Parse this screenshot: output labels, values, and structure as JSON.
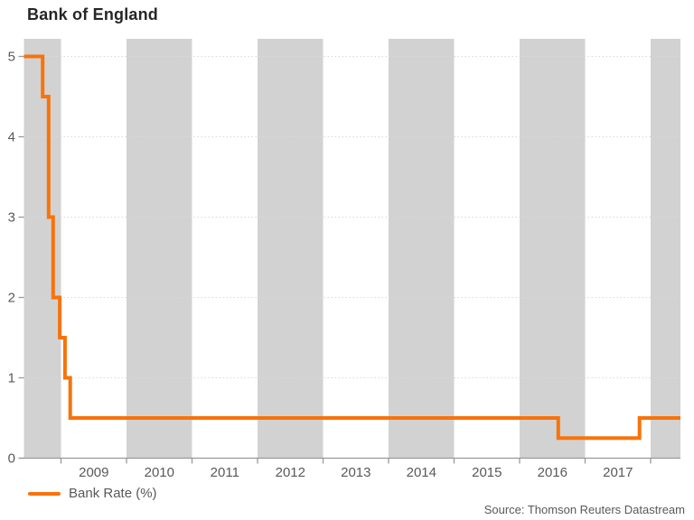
{
  "title": "Bank of England",
  "legend": {
    "label": "Bank Rate (%)"
  },
  "source": "Source: Thomson Reuters Datastream",
  "chart_data": {
    "type": "line",
    "subtype": "step",
    "title": "Bank of England",
    "xlabel": "",
    "ylabel": "",
    "x_range": [
      2008.434,
      2018.455
    ],
    "y_range": [
      0,
      5.21
    ],
    "y_ticks": [
      0,
      1,
      2,
      3,
      4,
      5
    ],
    "x_tick_years": [
      2009,
      2010,
      2011,
      2012,
      2013,
      2014,
      2015,
      2016,
      2017,
      2018
    ],
    "x_tick_labels": [
      "2009",
      "2010",
      "2011",
      "2012",
      "2013",
      "2014",
      "2015",
      "2016",
      "2017"
    ],
    "shaded_years": [
      2008,
      2010,
      2012,
      2014,
      2016,
      2018
    ],
    "grid": "horizontal-dotted",
    "legend_position": "bottom-left",
    "series": [
      {
        "name": "Bank Rate (%)",
        "color": "#f8730a",
        "step_points": [
          [
            2008.434,
            5.0
          ],
          [
            2008.72,
            5.0
          ],
          [
            2008.72,
            4.5
          ],
          [
            2008.81,
            4.5
          ],
          [
            2008.81,
            3.0
          ],
          [
            2008.88,
            3.0
          ],
          [
            2008.88,
            2.0
          ],
          [
            2008.98,
            2.0
          ],
          [
            2008.98,
            1.5
          ],
          [
            2009.06,
            1.5
          ],
          [
            2009.06,
            1.0
          ],
          [
            2009.14,
            1.0
          ],
          [
            2009.14,
            0.5
          ],
          [
            2016.59,
            0.5
          ],
          [
            2016.59,
            0.25
          ],
          [
            2017.83,
            0.25
          ],
          [
            2017.83,
            0.5
          ],
          [
            2018.455,
            0.5
          ]
        ]
      }
    ],
    "colors": {
      "line": "#f8730a",
      "band": "#d2d2d2",
      "grid": "#d9d9d9",
      "axis": "#999999",
      "tick_label": "#595959",
      "title": "#262626"
    }
  }
}
